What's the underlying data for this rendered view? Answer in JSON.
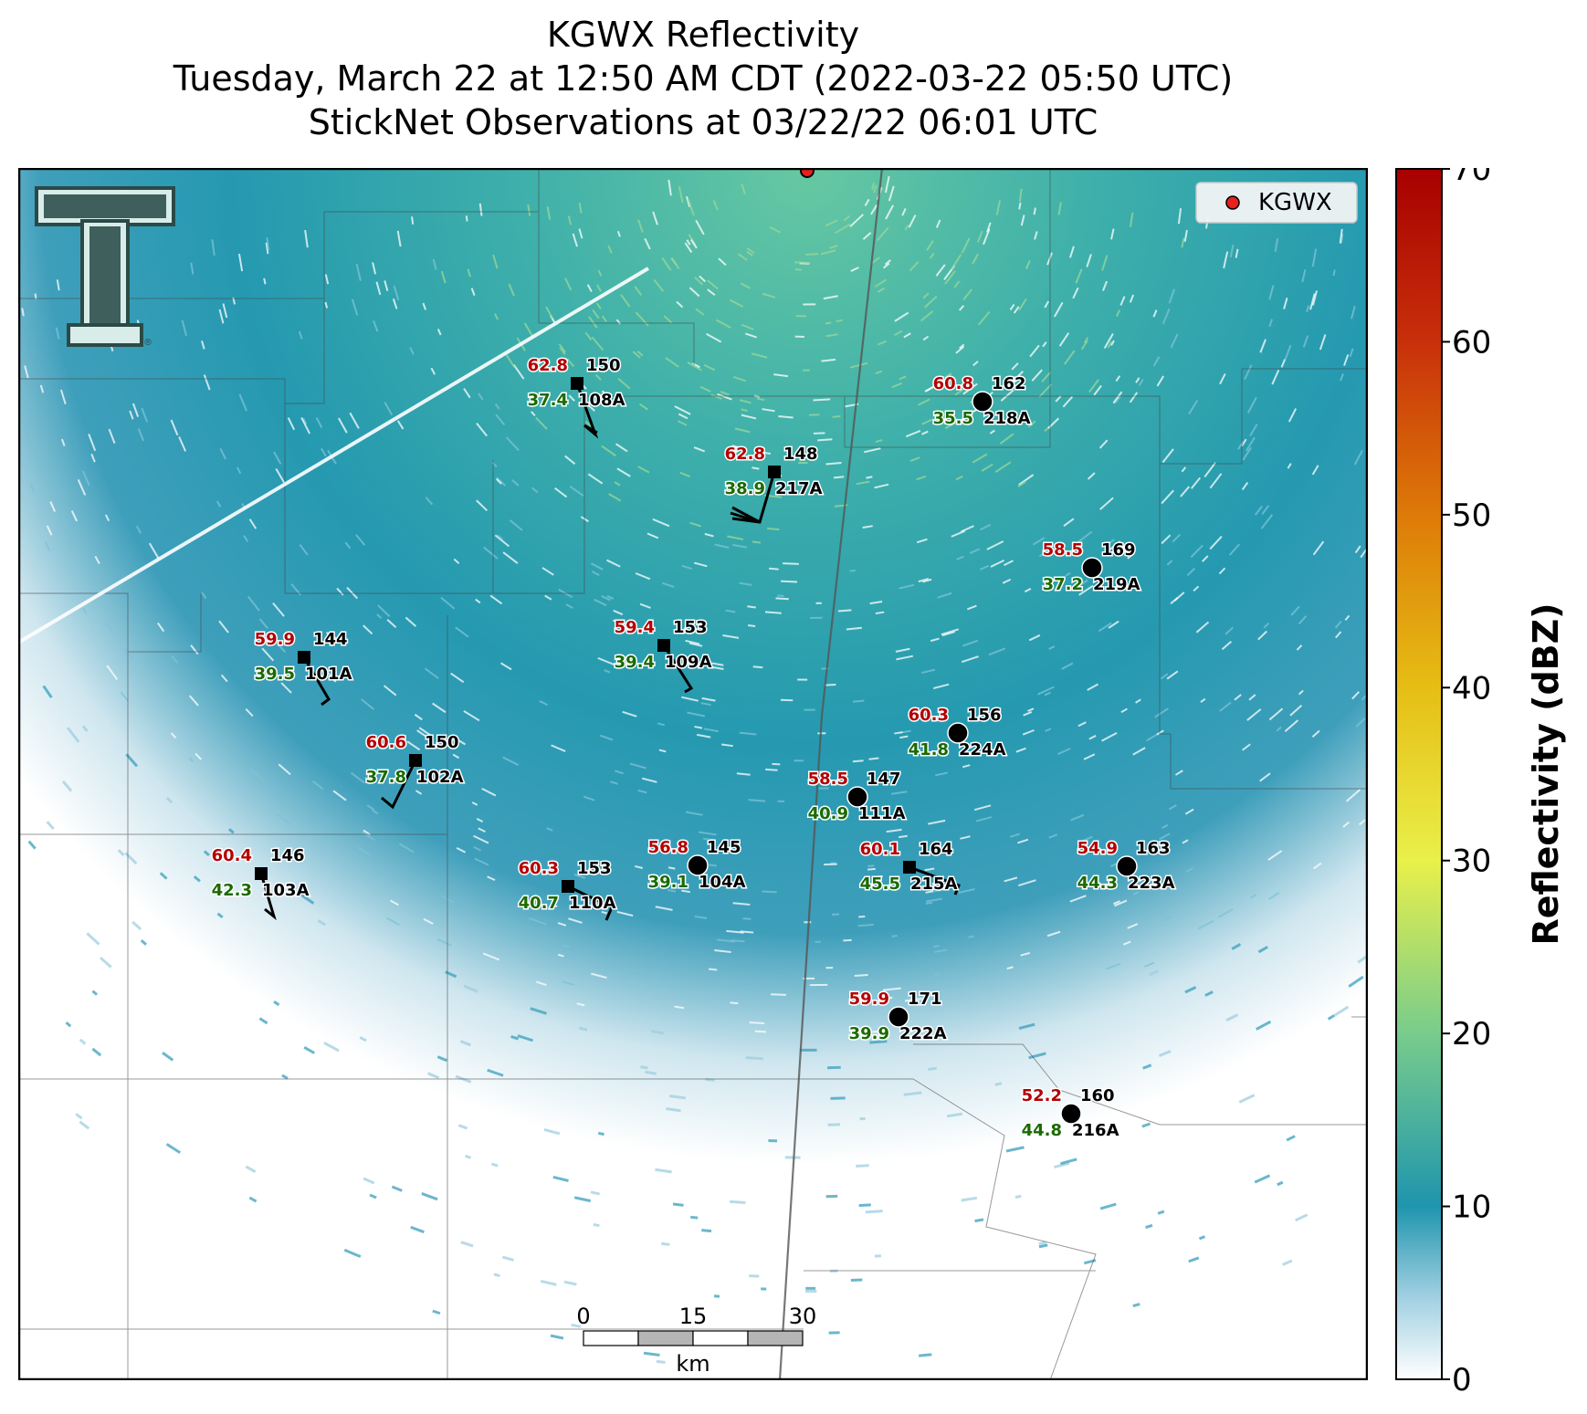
{
  "title": {
    "line1": "KGWX Reflectivity",
    "line2": "Tuesday, March 22 at 12:50 AM CDT (2022-03-22 05:50 UTC)",
    "line3": "StickNet Observations at 03/22/22 06:01 UTC"
  },
  "legend": {
    "label": "KGWX",
    "marker_color": "#e8201e"
  },
  "colorbar": {
    "label": "Reflectivity (dBZ)",
    "ticks": [
      "0",
      "10",
      "20",
      "30",
      "40",
      "50",
      "60",
      "70"
    ],
    "range": [
      0,
      70
    ],
    "stops": [
      {
        "value": 0,
        "color": "#ffffff"
      },
      {
        "value": 5,
        "color": "#9ccde0"
      },
      {
        "value": 10,
        "color": "#1f95ad"
      },
      {
        "value": 20,
        "color": "#78cc8c"
      },
      {
        "value": 30,
        "color": "#e9f04a"
      },
      {
        "value": 40,
        "color": "#e6be14"
      },
      {
        "value": 50,
        "color": "#dd7a08"
      },
      {
        "value": 60,
        "color": "#c8300a"
      },
      {
        "value": 70,
        "color": "#a80000"
      }
    ]
  },
  "scalebar": {
    "labels": [
      "0",
      "15",
      "30"
    ],
    "unit": "km"
  },
  "logo": {
    "letter": "T",
    "mark": "®"
  },
  "stations": [
    {
      "id": "108A",
      "temp": "62.8",
      "dew": "37.4",
      "pressure": "150",
      "marker": "square"
    },
    {
      "id": "217A",
      "temp": "62.8",
      "dew": "38.9",
      "pressure": "148",
      "marker": "square"
    },
    {
      "id": "218A",
      "temp": "60.8",
      "dew": "35.5",
      "pressure": "162",
      "marker": "circle"
    },
    {
      "id": "219A",
      "temp": "58.5",
      "dew": "37.2",
      "pressure": "169",
      "marker": "circle"
    },
    {
      "id": "101A",
      "temp": "59.9",
      "dew": "39.5",
      "pressure": "144",
      "marker": "square"
    },
    {
      "id": "109A",
      "temp": "59.4",
      "dew": "39.4",
      "pressure": "153",
      "marker": "square"
    },
    {
      "id": "224A",
      "temp": "60.3",
      "dew": "41.8",
      "pressure": "156",
      "marker": "circle"
    },
    {
      "id": "102A",
      "temp": "60.6",
      "dew": "37.8",
      "pressure": "150",
      "marker": "square"
    },
    {
      "id": "111A",
      "temp": "58.5",
      "dew": "40.9",
      "pressure": "147",
      "marker": "circle"
    },
    {
      "id": "103A",
      "temp": "60.4",
      "dew": "42.3",
      "pressure": "146",
      "marker": "square"
    },
    {
      "id": "110A",
      "temp": "60.3",
      "dew": "40.7",
      "pressure": "153",
      "marker": "square"
    },
    {
      "id": "104A",
      "temp": "56.8",
      "dew": "39.1",
      "pressure": "145",
      "marker": "circle"
    },
    {
      "id": "215A",
      "temp": "60.1",
      "dew": "45.5",
      "pressure": "164",
      "marker": "square"
    },
    {
      "id": "223A",
      "temp": "54.9",
      "dew": "44.3",
      "pressure": "163",
      "marker": "circle"
    },
    {
      "id": "222A",
      "temp": "59.9",
      "dew": "39.9",
      "pressure": "171",
      "marker": "circle"
    },
    {
      "id": "216A",
      "temp": "52.2",
      "dew": "44.8",
      "pressure": "160",
      "marker": "circle"
    }
  ]
}
